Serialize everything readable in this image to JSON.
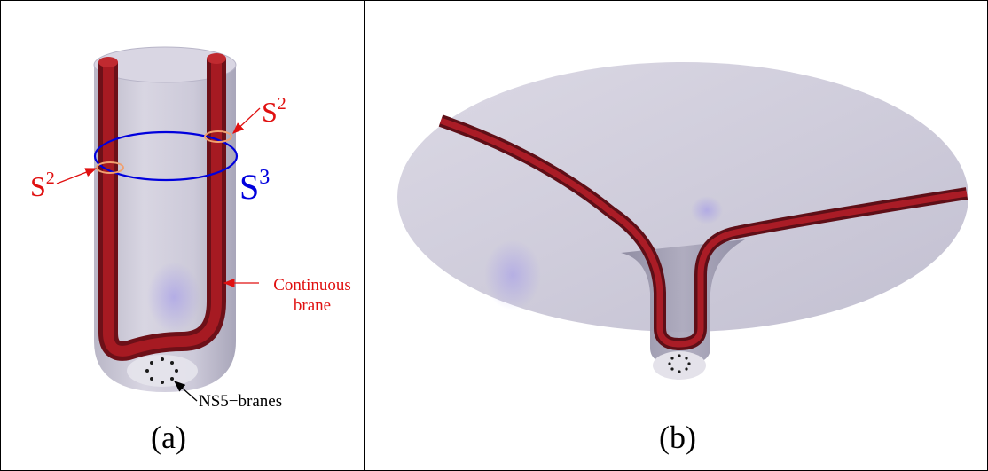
{
  "panel_a": {
    "s2_left": {
      "base": "S",
      "exp": "2"
    },
    "s2_right": {
      "base": "S",
      "exp": "2"
    },
    "s3": {
      "base": "S",
      "exp": "3"
    },
    "continuous_line1": "Continuous",
    "continuous_line2": "brane",
    "ns5": "NS5−branes",
    "caption": "(a)"
  },
  "panel_b": {
    "caption": "(b)"
  },
  "colors": {
    "brane": "#b01c24",
    "s3_circle": "#0000dd",
    "s2_circle": "#f0a070",
    "label_red": "#e01010",
    "surface": "#c9c6d6"
  }
}
